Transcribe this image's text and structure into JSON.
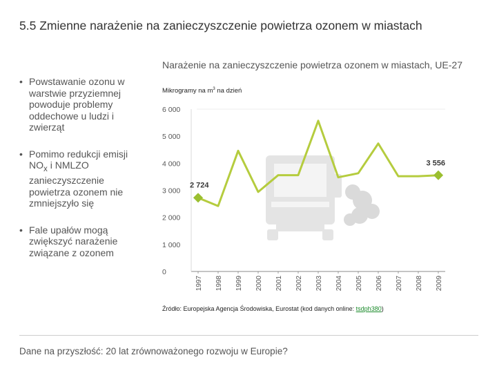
{
  "slide": {
    "title": "5.5 Zmienne narażenie na zanieczyszczenie powietrza ozonem w miastach",
    "bullet_char": "•",
    "bullets": {
      "b1": "Powstawanie ozonu w warstwie przyziemnej powoduje problemy oddechowe u ludzi i zwierząt",
      "b2_pre": "Pomimo redukcji emisji NO",
      "b2_sub": "x",
      "b2_post": " i NMLZO zanieczyszczenie powietrza ozonem nie zmniejszyło się",
      "b3": "Fale upałów mogą zwiększyć narażenie związane z ozonem"
    }
  },
  "chart_title": "Narażenie na zanieczyszczenie powietrza ozonem w miastach, UE-27",
  "chart_unit_pre": "Mikrogramy na m",
  "chart_unit_sup": "3",
  "chart_unit_post": " na dzień",
  "chart_data": {
    "type": "line",
    "title": "Narażenie na zanieczyszczenie powietrza ozonem w miastach, UE-27",
    "ylabel": "Mikrogramy na m³ na dzień",
    "xlabel": "",
    "x": [
      "1997",
      "1998",
      "1999",
      "2000",
      "2001",
      "2002",
      "2003",
      "2004",
      "2005",
      "2006",
      "2007",
      "2008",
      "2009"
    ],
    "values": [
      2724,
      2420,
      4460,
      2940,
      3560,
      3560,
      5570,
      3480,
      3630,
      4730,
      3520,
      3520,
      3556
    ],
    "ylim": [
      0,
      6000
    ],
    "yticks": [
      0,
      1000,
      2000,
      3000,
      4000,
      5000,
      6000
    ],
    "ytick_labels": [
      "0",
      "1 000",
      "2 000",
      "3 000",
      "4 000",
      "5 000",
      "6 000"
    ],
    "labels": [
      {
        "index": 0,
        "text": "2 724"
      },
      {
        "index": 12,
        "text": "3 556"
      }
    ],
    "grid": false,
    "colors": {
      "line": "#b5cc3e",
      "marker": "#9bbf30",
      "label": "#3a3a3a",
      "axis": "#888888",
      "tick_text": "#555555",
      "truck": "#e4e4e4",
      "smoke": "#dadada",
      "gridline": "#d9d9d9"
    }
  },
  "source": {
    "prefix": "Źródło: Europejska Agencja Środowiska, Eurostat (kod danych online: ",
    "code": "tsdph380",
    "suffix": ")"
  },
  "footer": "Dane na przyszłość: 20 lat zrównoważonego rozwoju w Europie?"
}
